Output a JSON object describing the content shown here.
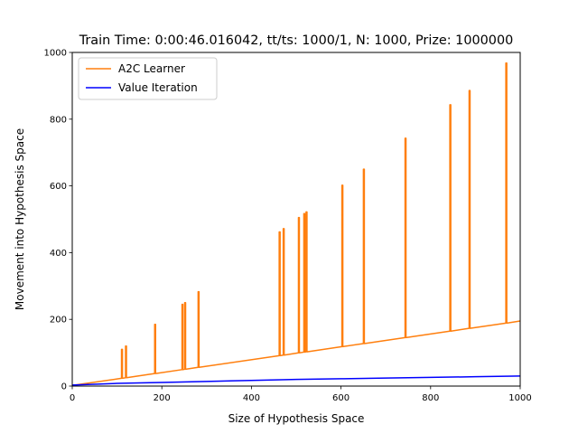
{
  "chart_data": {
    "type": "line",
    "title": "Train Time: 0:00:46.016042, tt/ts: 1000/1, N: 1000, Prize: 1000000",
    "xlabel": "Size of Hypothesis Space",
    "ylabel": "Movement into Hypothesis Space",
    "xlim": [
      0,
      1000
    ],
    "ylim": [
      0,
      1000
    ],
    "xticks": [
      0,
      200,
      400,
      600,
      800,
      1000
    ],
    "yticks": [
      0,
      200,
      400,
      600,
      800,
      1000
    ],
    "grid": false,
    "legend_position": "upper-left",
    "series": [
      {
        "name": "A2C Learner",
        "color": "#ff7f0e",
        "baseline": {
          "x": [
            0,
            1000
          ],
          "y": [
            2,
            195
          ]
        },
        "spikes": [
          {
            "x": 110,
            "y": 110
          },
          {
            "x": 119,
            "y": 120
          },
          {
            "x": 184,
            "y": 185
          },
          {
            "x": 245,
            "y": 245
          },
          {
            "x": 251,
            "y": 250
          },
          {
            "x": 281,
            "y": 283
          },
          {
            "x": 462,
            "y": 462
          },
          {
            "x": 471,
            "y": 472
          },
          {
            "x": 505,
            "y": 505
          },
          {
            "x": 517,
            "y": 517
          },
          {
            "x": 522,
            "y": 522
          },
          {
            "x": 602,
            "y": 602
          },
          {
            "x": 650,
            "y": 650
          },
          {
            "x": 743,
            "y": 743
          },
          {
            "x": 843,
            "y": 843
          },
          {
            "x": 886,
            "y": 886
          },
          {
            "x": 968,
            "y": 968
          }
        ]
      },
      {
        "name": "Value Iteration",
        "color": "#0000ff",
        "x": [
          0,
          100,
          200,
          300,
          400,
          500,
          600,
          700,
          800,
          900,
          1000
        ],
        "y": [
          3,
          8,
          11,
          14,
          17,
          20,
          22,
          24,
          26,
          28,
          30
        ]
      }
    ]
  }
}
